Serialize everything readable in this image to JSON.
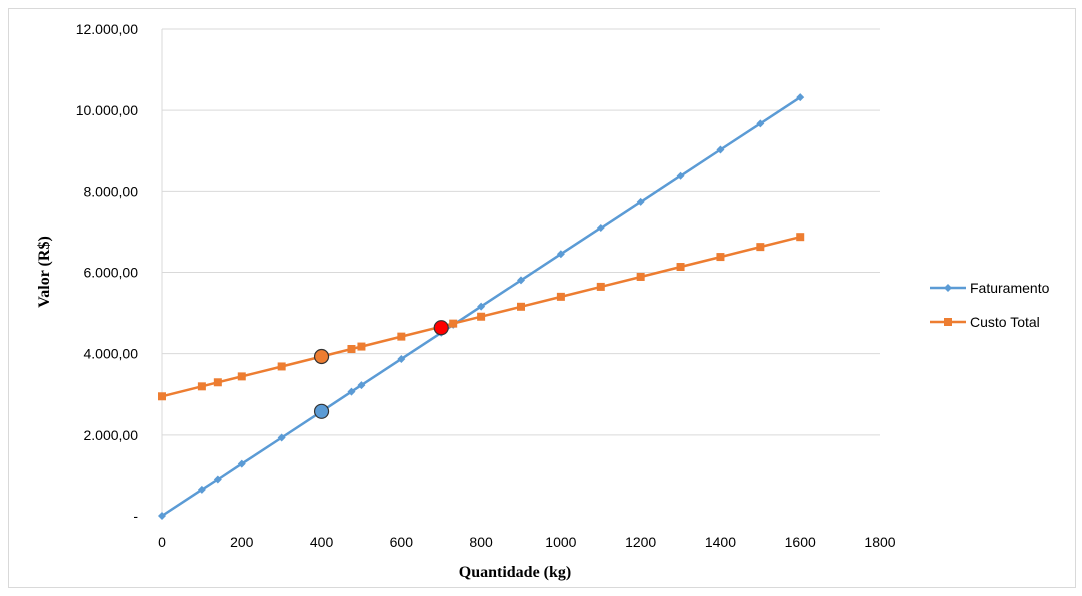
{
  "chart_data": {
    "type": "line",
    "title": "",
    "xlabel": "Quantidade (kg)",
    "ylabel": "Valor (R$)",
    "xlim": [
      0,
      1800
    ],
    "ylim": [
      0,
      12000
    ],
    "x_ticks": [
      "0",
      "200",
      "400",
      "600",
      "800",
      "1000",
      "1200",
      "1400",
      "1600",
      "1800"
    ],
    "y_ticks": [
      "-",
      "2.000,00",
      "4.000,00",
      "6.000,00",
      "8.000,00",
      "10.000,00",
      "12.000,00"
    ],
    "grid": "horizontal",
    "legend_position": "right",
    "series": [
      {
        "name": "Faturamento",
        "color": "#5b9bd5",
        "marker": "diamond",
        "x": [
          0,
          100,
          140,
          200,
          300,
          400,
          475,
          500,
          600,
          700,
          730,
          800,
          900,
          1000,
          1100,
          1200,
          1300,
          1400,
          1500,
          1600
        ],
        "y": [
          0,
          645,
          900,
          1290,
          1935,
          2580,
          3065,
          3225,
          3870,
          4515,
          4710,
          5160,
          5805,
          6450,
          7095,
          7740,
          8385,
          9030,
          9675,
          10320
        ]
      },
      {
        "name": "Custo Total",
        "color": "#ed7d31",
        "marker": "square",
        "x": [
          0,
          100,
          140,
          200,
          300,
          400,
          475,
          500,
          600,
          700,
          730,
          800,
          900,
          1000,
          1100,
          1200,
          1300,
          1400,
          1500,
          1600
        ],
        "y": [
          2950,
          3195,
          3295,
          3440,
          3685,
          3930,
          4115,
          4175,
          4420,
          4665,
          4740,
          4910,
          5155,
          5400,
          5645,
          5890,
          6135,
          6380,
          6625,
          6870
        ]
      }
    ],
    "highlights": [
      {
        "x": 400,
        "y": 2580,
        "color": "#5b9bd5"
      },
      {
        "x": 400,
        "y": 3930,
        "color": "#ed7d31"
      },
      {
        "x": 700,
        "y": 4640,
        "color": "#ff0000"
      }
    ]
  }
}
